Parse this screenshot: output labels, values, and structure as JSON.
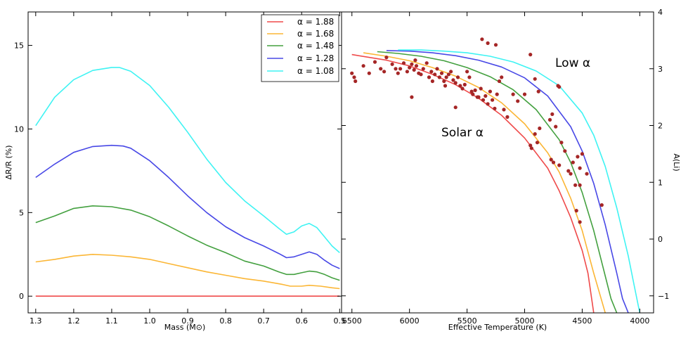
{
  "colors": {
    "a188": "#ef4a4a",
    "a168": "#fbb635",
    "a148": "#43a03f",
    "a128": "#4848e6",
    "a108": "#3ff3f3",
    "dots": "#a52626"
  },
  "chart_data": [
    {
      "id": "left",
      "type": "line",
      "xlabel": "Mass (M⊙)",
      "ylabel": "ΔR/R (%)",
      "xlim": [
        1.32,
        0.495
      ],
      "ylim": [
        -1,
        17
      ],
      "xticks": [
        1.3,
        1.2,
        1.1,
        1.0,
        0.9,
        0.8,
        0.7,
        0.6,
        0.5
      ],
      "xtick_labels": [
        "1.3",
        "1.2",
        "1.1",
        "1.0",
        "0.9",
        "0.8",
        "0.7",
        "0.6",
        "0.5"
      ],
      "yticks": [
        0,
        5,
        10,
        15
      ],
      "ytick_labels": [
        "0",
        "5",
        "10",
        "15"
      ],
      "legend": {
        "location": "upper-right",
        "entries": [
          "α = 1.88",
          "α = 1.68",
          "α = 1.48",
          "α = 1.28",
          "α = 1.08"
        ]
      },
      "series": [
        {
          "name": "α = 1.88",
          "color": "#ef4a4a",
          "x": [
            1.3,
            0.5
          ],
          "y": [
            0.0,
            0.0
          ]
        },
        {
          "name": "α = 1.68",
          "color": "#fbb635",
          "x": [
            1.3,
            1.25,
            1.2,
            1.15,
            1.1,
            1.05,
            1.0,
            0.95,
            0.9,
            0.85,
            0.8,
            0.75,
            0.7,
            0.65,
            0.63,
            0.6,
            0.58,
            0.55,
            0.52,
            0.5
          ],
          "y": [
            2.05,
            2.2,
            2.4,
            2.5,
            2.45,
            2.35,
            2.2,
            1.95,
            1.7,
            1.45,
            1.25,
            1.05,
            0.9,
            0.7,
            0.6,
            0.6,
            0.65,
            0.6,
            0.5,
            0.45
          ]
        },
        {
          "name": "α = 1.48",
          "color": "#43a03f",
          "x": [
            1.3,
            1.25,
            1.2,
            1.15,
            1.1,
            1.05,
            1.0,
            0.95,
            0.9,
            0.85,
            0.8,
            0.75,
            0.7,
            0.66,
            0.64,
            0.62,
            0.6,
            0.58,
            0.56,
            0.54,
            0.52,
            0.5
          ],
          "y": [
            4.4,
            4.8,
            5.25,
            5.4,
            5.35,
            5.15,
            4.75,
            4.2,
            3.6,
            3.05,
            2.6,
            2.1,
            1.8,
            1.45,
            1.3,
            1.3,
            1.4,
            1.5,
            1.45,
            1.3,
            1.1,
            0.95
          ]
        },
        {
          "name": "α = 1.28",
          "color": "#4848e6",
          "x": [
            1.3,
            1.25,
            1.2,
            1.15,
            1.1,
            1.07,
            1.05,
            1.0,
            0.95,
            0.9,
            0.85,
            0.8,
            0.75,
            0.7,
            0.66,
            0.64,
            0.62,
            0.6,
            0.58,
            0.56,
            0.54,
            0.52,
            0.5
          ],
          "y": [
            7.1,
            7.9,
            8.6,
            8.95,
            9.02,
            8.98,
            8.85,
            8.1,
            7.1,
            6.0,
            5.0,
            4.15,
            3.5,
            3.0,
            2.55,
            2.3,
            2.35,
            2.5,
            2.65,
            2.5,
            2.15,
            1.85,
            1.65
          ]
        },
        {
          "name": "α = 1.08",
          "color": "#3ff3f3",
          "x": [
            1.3,
            1.25,
            1.2,
            1.15,
            1.1,
            1.08,
            1.05,
            1.0,
            0.95,
            0.9,
            0.85,
            0.8,
            0.75,
            0.7,
            0.66,
            0.64,
            0.62,
            0.6,
            0.58,
            0.56,
            0.54,
            0.52,
            0.5
          ],
          "y": [
            10.2,
            11.9,
            12.95,
            13.5,
            13.68,
            13.68,
            13.45,
            12.6,
            11.3,
            9.8,
            8.2,
            6.8,
            5.7,
            4.8,
            4.05,
            3.7,
            3.85,
            4.2,
            4.35,
            4.1,
            3.55,
            3.0,
            2.6
          ]
        }
      ]
    },
    {
      "id": "right",
      "type": "scatter",
      "xlabel": "Effective Temperature (K)",
      "ylabel": "A(Li)",
      "xlim": [
        6590,
        3880
      ],
      "ylim": [
        -1.3,
        4.0
      ],
      "xticks": [
        6500,
        6000,
        5500,
        5000,
        4500,
        4000
      ],
      "xtick_labels": [
        "6500",
        "6000",
        "5500",
        "5000",
        "4500",
        "4000"
      ],
      "yticks": [
        -1,
        0,
        1,
        2,
        3,
        4
      ],
      "ytick_labels": [
        "−1",
        "0",
        "1",
        "2",
        "3",
        "4"
      ],
      "annotations": [
        {
          "text": "Low α",
          "x": 4710,
          "y": 3.15
        },
        {
          "text": "Solar α",
          "x": 5760,
          "y": 1.9
        }
      ],
      "series": [
        {
          "name": "α = 1.88",
          "color": "#ef4a4a",
          "x": [
            6500,
            6200,
            6000,
            5800,
            5600,
            5400,
            5200,
            5000,
            4800,
            4700,
            4600,
            4500,
            4450,
            4400
          ],
          "y": [
            3.25,
            3.15,
            3.05,
            2.9,
            2.72,
            2.48,
            2.18,
            1.78,
            1.25,
            0.85,
            0.38,
            -0.2,
            -0.6,
            -1.3
          ]
        },
        {
          "name": "α = 1.68",
          "color": "#fbb635",
          "x": [
            6400,
            6200,
            6000,
            5800,
            5600,
            5400,
            5200,
            5000,
            4800,
            4700,
            4600,
            4500,
            4400,
            4350,
            4300
          ],
          "y": [
            3.28,
            3.22,
            3.14,
            3.02,
            2.87,
            2.67,
            2.4,
            2.03,
            1.52,
            1.18,
            0.72,
            0.15,
            -0.6,
            -0.95,
            -1.3
          ]
        },
        {
          "name": "α = 1.48",
          "color": "#43a03f",
          "x": [
            6280,
            6100,
            5900,
            5700,
            5500,
            5300,
            5100,
            4900,
            4700,
            4600,
            4500,
            4400,
            4300,
            4250,
            4200
          ],
          "y": [
            3.3,
            3.27,
            3.22,
            3.14,
            3.02,
            2.86,
            2.63,
            2.28,
            1.75,
            1.35,
            0.82,
            0.15,
            -0.65,
            -1.05,
            -1.3
          ]
        },
        {
          "name": "α = 1.28",
          "color": "#4848e6",
          "x": [
            6200,
            6000,
            5800,
            5600,
            5400,
            5200,
            5000,
            4800,
            4600,
            4500,
            4400,
            4300,
            4200,
            4150,
            4100
          ],
          "y": [
            3.32,
            3.31,
            3.28,
            3.23,
            3.15,
            3.03,
            2.84,
            2.52,
            1.98,
            1.55,
            0.98,
            0.25,
            -0.6,
            -1.05,
            -1.3
          ]
        },
        {
          "name": "α = 1.08",
          "color": "#3ff3f3",
          "x": [
            6100,
            5900,
            5700,
            5500,
            5300,
            5100,
            4900,
            4700,
            4500,
            4400,
            4300,
            4200,
            4100,
            4050,
            4000
          ],
          "y": [
            3.33,
            3.33,
            3.31,
            3.28,
            3.22,
            3.12,
            2.96,
            2.7,
            2.22,
            1.83,
            1.28,
            0.55,
            -0.3,
            -0.8,
            -1.3
          ]
        }
      ],
      "points": {
        "color": "#a52626",
        "x": [
          6500,
          6480,
          6470,
          6400,
          6350,
          6300,
          6250,
          6220,
          6200,
          6150,
          6120,
          6100,
          6080,
          6050,
          6020,
          6000,
          5980,
          5960,
          5950,
          5940,
          5920,
          5900,
          5880,
          5850,
          5830,
          5810,
          5800,
          5780,
          5760,
          5740,
          5720,
          5700,
          5690,
          5680,
          5660,
          5640,
          5620,
          5600,
          5580,
          5560,
          5540,
          5520,
          5500,
          5480,
          5460,
          5450,
          5430,
          5410,
          5400,
          5380,
          5360,
          5340,
          5320,
          5300,
          5280,
          5260,
          5240,
          5220,
          5200,
          5180,
          5150,
          5100,
          5000,
          5980,
          5600,
          5370,
          5320,
          5250,
          5060,
          4950,
          4910,
          4880,
          4870,
          4780,
          4760,
          4730,
          4710,
          4700,
          4680,
          4650,
          4620,
          4600,
          4580,
          4560,
          4540,
          4520,
          4520,
          4500,
          4460,
          4950,
          4940,
          4910,
          4890,
          4770,
          4750,
          4700,
          4550,
          4520,
          4330
        ],
        "y": [
          2.92,
          2.85,
          2.78,
          3.05,
          2.92,
          3.12,
          3.0,
          2.95,
          3.2,
          3.08,
          3.0,
          2.92,
          3.0,
          3.1,
          2.95,
          3.02,
          3.08,
          2.98,
          3.15,
          3.05,
          2.92,
          2.9,
          3.0,
          3.1,
          2.85,
          2.95,
          2.78,
          2.9,
          3.0,
          2.85,
          2.92,
          2.78,
          2.7,
          2.85,
          2.9,
          2.95,
          2.8,
          2.75,
          2.85,
          2.7,
          2.65,
          2.72,
          2.95,
          2.85,
          2.6,
          2.55,
          2.62,
          2.5,
          2.5,
          2.65,
          2.45,
          2.52,
          2.38,
          2.6,
          2.45,
          2.3,
          2.55,
          2.78,
          2.85,
          2.28,
          2.15,
          2.55,
          2.55,
          2.5,
          2.32,
          3.52,
          3.45,
          3.42,
          2.43,
          3.25,
          2.82,
          2.6,
          1.95,
          2.1,
          2.2,
          1.98,
          2.7,
          2.68,
          1.7,
          1.55,
          1.2,
          1.15,
          1.35,
          0.95,
          1.45,
          1.25,
          0.95,
          1.5,
          1.15,
          1.65,
          1.6,
          1.85,
          1.7,
          1.4,
          1.35,
          1.3,
          0.5,
          0.3,
          0.6
        ]
      }
    }
  ]
}
